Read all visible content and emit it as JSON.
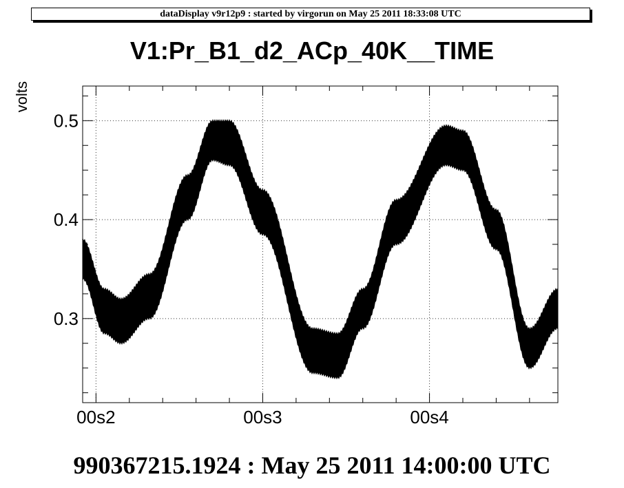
{
  "header": {
    "text": "dataDisplay v9r12p9 : started by virgorun on May 25 2011 18:33:08 UTC"
  },
  "footer": {
    "time_label": "990367215.1924 : May 25 2011 14:00:00 UTC"
  },
  "colors": {
    "background": "#ffffff",
    "trace": "#000000",
    "grid": "#000000"
  },
  "chart_data": {
    "type": "line",
    "title": "V1:Pr_B1_d2_ACp_40K__TIME",
    "xlabel": "",
    "ylabel": "volts",
    "grid": true,
    "legend": "none",
    "x_unit": "s",
    "xlim": [
      0.192,
      0.477
    ],
    "ylim": [
      0.215,
      0.535
    ],
    "x_ticks": [
      {
        "value": 0.2,
        "label": "00s2"
      },
      {
        "value": 0.3,
        "label": "00s3"
      },
      {
        "value": 0.4,
        "label": "00s4"
      }
    ],
    "y_ticks": [
      {
        "value": 0.3,
        "label": "0.3"
      },
      {
        "value": 0.4,
        "label": "0.4"
      },
      {
        "value": 0.5,
        "label": "0.5"
      }
    ],
    "series": [
      {
        "band": true,
        "x": [
          0.192,
          0.205,
          0.215,
          0.232,
          0.255,
          0.27,
          0.28,
          0.3,
          0.33,
          0.345,
          0.36,
          0.38,
          0.41,
          0.42,
          0.44,
          0.46,
          0.477
        ],
        "upper": [
          0.38,
          0.33,
          0.32,
          0.345,
          0.445,
          0.5,
          0.5,
          0.43,
          0.29,
          0.285,
          0.33,
          0.42,
          0.495,
          0.49,
          0.41,
          0.29,
          0.33
        ],
        "lower": [
          0.34,
          0.285,
          0.275,
          0.3,
          0.4,
          0.46,
          0.455,
          0.385,
          0.245,
          0.24,
          0.29,
          0.375,
          0.455,
          0.45,
          0.37,
          0.25,
          0.29
        ]
      }
    ]
  }
}
